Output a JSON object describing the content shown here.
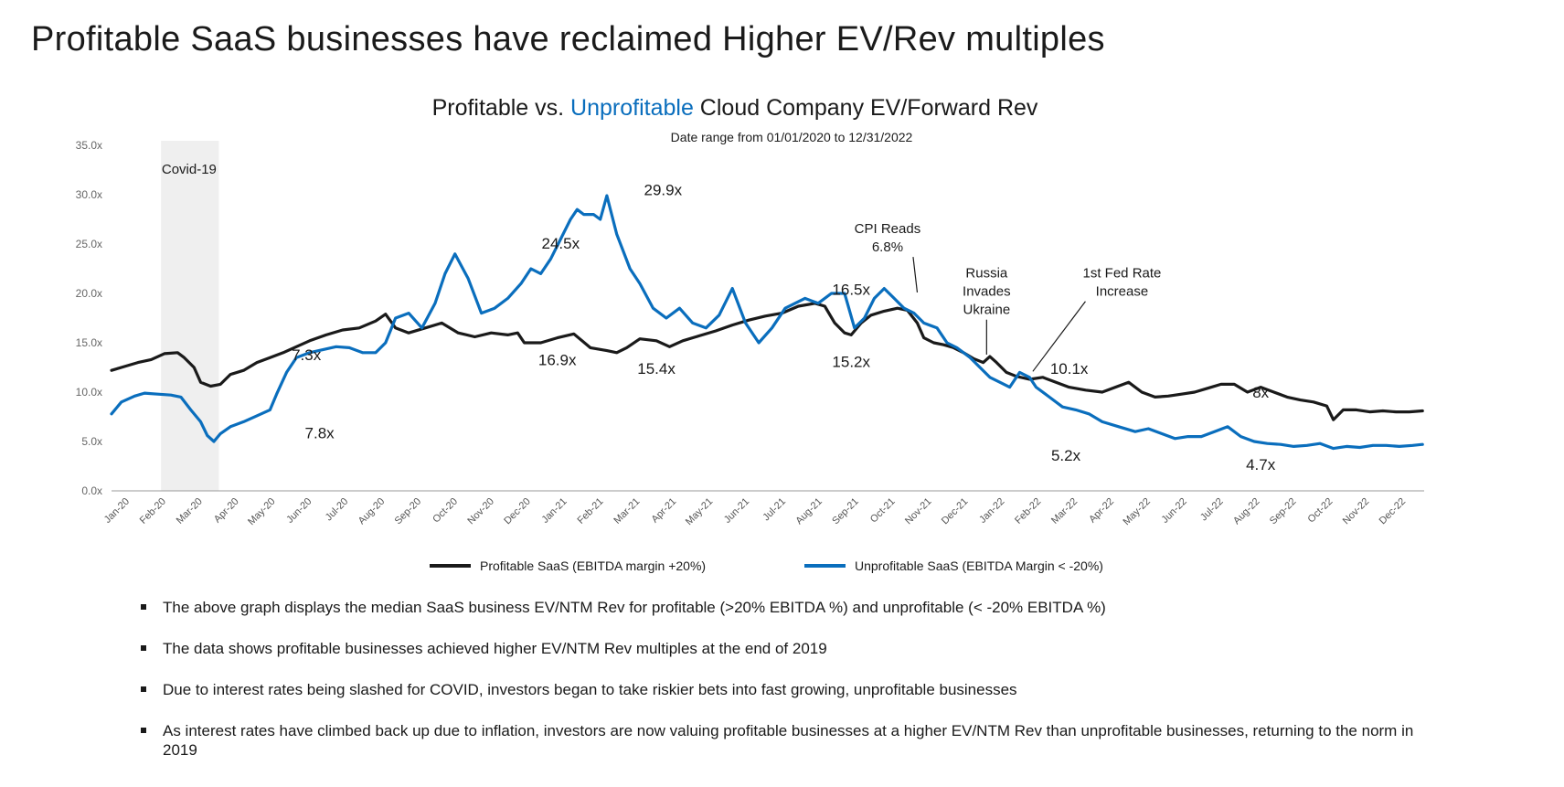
{
  "page": {
    "title": "Profitable SaaS businesses have reclaimed Higher EV/Rev multiples"
  },
  "chart_data": {
    "type": "line",
    "title": {
      "part1": "Profitable",
      "part2": " vs. ",
      "part3": "Unprofitable",
      "part4": " Cloud Company EV/Forward Rev"
    },
    "subtitle": "Date range from 01/01/2020 to 12/31/2022",
    "ylim": [
      0,
      35
    ],
    "y_ticks": [
      "0.0x",
      "5.0x",
      "10.0x",
      "15.0x",
      "20.0x",
      "25.0x",
      "30.0x",
      "35.0x"
    ],
    "x_ticks": [
      "Jan-20",
      "Feb-20",
      "Mar-20",
      "Apr-20",
      "May-20",
      "Jun-20",
      "Jul-20",
      "Aug-20",
      "Sep-20",
      "Oct-20",
      "Nov-20",
      "Dec-20",
      "Jan-21",
      "Feb-21",
      "Mar-21",
      "Apr-21",
      "May-21",
      "Jun-21",
      "Jul-21",
      "Aug-21",
      "Sep-21",
      "Oct-21",
      "Nov-21",
      "Dec-21",
      "Jan-22",
      "Feb-22",
      "Mar-22",
      "Apr-22",
      "May-22",
      "Jun-22",
      "Jul-22",
      "Aug-22",
      "Sep-22",
      "Oct-22",
      "Nov-22",
      "Dec-22"
    ],
    "grid": false,
    "legend_position": "bottom",
    "colors": {
      "profitable": "#1a1a1a",
      "unprofitable": "#0a6ebd",
      "shade": "#efefef"
    },
    "shaded_region": {
      "label": "Covid-19",
      "x_start": 1.5,
      "x_end": 3.25
    },
    "series": [
      {
        "name": "Profitable SaaS (EBITDA margin +20%)",
        "key": "profitable",
        "points": [
          [
            0,
            12.2
          ],
          [
            0.4,
            12.6
          ],
          [
            0.8,
            13.0
          ],
          [
            1.2,
            13.3
          ],
          [
            1.6,
            13.9
          ],
          [
            2.0,
            14.0
          ],
          [
            2.2,
            13.5
          ],
          [
            2.5,
            12.5
          ],
          [
            2.7,
            11.0
          ],
          [
            3.0,
            10.6
          ],
          [
            3.3,
            10.8
          ],
          [
            3.6,
            11.8
          ],
          [
            4.0,
            12.2
          ],
          [
            4.4,
            13.0
          ],
          [
            4.8,
            13.5
          ],
          [
            5.2,
            14.0
          ],
          [
            5.6,
            14.6
          ],
          [
            6.0,
            15.2
          ],
          [
            6.5,
            15.8
          ],
          [
            7.0,
            16.3
          ],
          [
            7.5,
            16.5
          ],
          [
            8.0,
            17.2
          ],
          [
            8.3,
            17.9
          ],
          [
            8.6,
            16.5
          ],
          [
            9.0,
            16.0
          ],
          [
            9.5,
            16.5
          ],
          [
            10.0,
            17.0
          ],
          [
            10.5,
            16.0
          ],
          [
            11.0,
            15.6
          ],
          [
            11.5,
            16.0
          ],
          [
            12.0,
            15.8
          ],
          [
            12.3,
            16.0
          ],
          [
            12.5,
            15.0
          ],
          [
            13.0,
            15.0
          ],
          [
            13.5,
            15.5
          ],
          [
            14.0,
            15.9
          ],
          [
            14.5,
            14.5
          ],
          [
            15.0,
            14.2
          ],
          [
            15.3,
            14.0
          ],
          [
            15.6,
            14.5
          ],
          [
            16.0,
            15.4
          ],
          [
            16.5,
            15.2
          ],
          [
            16.9,
            14.6
          ],
          [
            17.3,
            15.2
          ],
          [
            17.8,
            15.7
          ],
          [
            18.3,
            16.2
          ],
          [
            18.8,
            16.8
          ],
          [
            19.3,
            17.3
          ],
          [
            19.8,
            17.7
          ],
          [
            20.3,
            18.0
          ],
          [
            20.8,
            18.7
          ],
          [
            21.3,
            19.0
          ],
          [
            21.6,
            18.7
          ],
          [
            21.9,
            17.0
          ],
          [
            22.2,
            16.0
          ],
          [
            22.4,
            15.8
          ],
          [
            22.7,
            17.0
          ],
          [
            23.0,
            17.8
          ],
          [
            23.4,
            18.2
          ],
          [
            23.8,
            18.5
          ],
          [
            24.1,
            18.3
          ],
          [
            24.4,
            17.0
          ],
          [
            24.6,
            15.5
          ],
          [
            24.9,
            15.0
          ],
          [
            25.2,
            14.8
          ],
          [
            25.5,
            14.5
          ],
          [
            25.8,
            14.0
          ],
          [
            26.1,
            13.4
          ],
          [
            26.4,
            13.0
          ],
          [
            26.6,
            13.6
          ],
          [
            26.8,
            13.0
          ],
          [
            27.1,
            12.0
          ],
          [
            27.4,
            11.6
          ],
          [
            27.8,
            11.3
          ],
          [
            28.2,
            11.5
          ],
          [
            28.6,
            11.0
          ],
          [
            29.0,
            10.5
          ],
          [
            29.5,
            10.2
          ],
          [
            30.0,
            10.0
          ],
          [
            30.4,
            10.5
          ],
          [
            30.8,
            11.0
          ],
          [
            31.2,
            10.0
          ],
          [
            31.6,
            9.5
          ],
          [
            32.0,
            9.6
          ],
          [
            32.4,
            9.8
          ],
          [
            32.8,
            10.0
          ],
          [
            33.2,
            10.4
          ],
          [
            33.6,
            10.8
          ],
          [
            34.0,
            10.8
          ],
          [
            34.4,
            10.0
          ],
          [
            34.8,
            10.5
          ],
          [
            35.2,
            10.0
          ],
          [
            35.6,
            9.5
          ],
          [
            36.0,
            9.2
          ],
          [
            36.4,
            9.0
          ],
          [
            36.8,
            8.6
          ],
          [
            37.0,
            7.2
          ],
          [
            37.3,
            8.2
          ],
          [
            37.7,
            8.2
          ],
          [
            38.1,
            8.0
          ],
          [
            38.5,
            8.1
          ],
          [
            38.9,
            8.0
          ],
          [
            39.3,
            8.0
          ],
          [
            39.7,
            8.1
          ]
        ]
      },
      {
        "name": "Unprofitable SaaS (EBITDA Margin < -20%)",
        "key": "unprofitable",
        "points": [
          [
            0,
            7.8
          ],
          [
            0.3,
            9.0
          ],
          [
            0.7,
            9.6
          ],
          [
            1.0,
            9.9
          ],
          [
            1.4,
            9.8
          ],
          [
            1.8,
            9.7
          ],
          [
            2.1,
            9.5
          ],
          [
            2.4,
            8.2
          ],
          [
            2.7,
            7.0
          ],
          [
            2.9,
            5.6
          ],
          [
            3.1,
            5.0
          ],
          [
            3.3,
            5.8
          ],
          [
            3.6,
            6.5
          ],
          [
            4.0,
            7.0
          ],
          [
            4.4,
            7.6
          ],
          [
            4.8,
            8.2
          ],
          [
            5.0,
            9.8
          ],
          [
            5.3,
            12.0
          ],
          [
            5.6,
            13.5
          ],
          [
            6.0,
            14.0
          ],
          [
            6.4,
            14.3
          ],
          [
            6.8,
            14.6
          ],
          [
            7.2,
            14.5
          ],
          [
            7.6,
            14.0
          ],
          [
            8.0,
            14.0
          ],
          [
            8.3,
            15.0
          ],
          [
            8.6,
            17.5
          ],
          [
            9.0,
            18.0
          ],
          [
            9.4,
            16.5
          ],
          [
            9.8,
            19.0
          ],
          [
            10.1,
            22.0
          ],
          [
            10.4,
            24.0
          ],
          [
            10.8,
            21.5
          ],
          [
            11.2,
            18.0
          ],
          [
            11.6,
            18.5
          ],
          [
            12.0,
            19.5
          ],
          [
            12.4,
            21.0
          ],
          [
            12.7,
            22.5
          ],
          [
            13.0,
            22.0
          ],
          [
            13.3,
            23.5
          ],
          [
            13.6,
            25.5
          ],
          [
            13.9,
            27.5
          ],
          [
            14.1,
            28.5
          ],
          [
            14.3,
            28.0
          ],
          [
            14.6,
            28.0
          ],
          [
            14.8,
            27.5
          ],
          [
            15.0,
            29.9
          ],
          [
            15.3,
            26.0
          ],
          [
            15.7,
            22.5
          ],
          [
            16.0,
            21.0
          ],
          [
            16.4,
            18.5
          ],
          [
            16.8,
            17.5
          ],
          [
            17.2,
            18.5
          ],
          [
            17.6,
            17.0
          ],
          [
            18.0,
            16.5
          ],
          [
            18.4,
            17.8
          ],
          [
            18.8,
            20.5
          ],
          [
            19.2,
            17.0
          ],
          [
            19.6,
            15.0
          ],
          [
            20.0,
            16.5
          ],
          [
            20.4,
            18.5
          ],
          [
            20.7,
            19.0
          ],
          [
            21.0,
            19.5
          ],
          [
            21.4,
            19.0
          ],
          [
            21.8,
            20.0
          ],
          [
            22.2,
            20.0
          ],
          [
            22.5,
            16.5
          ],
          [
            22.8,
            17.5
          ],
          [
            23.1,
            19.5
          ],
          [
            23.4,
            20.5
          ],
          [
            23.7,
            19.5
          ],
          [
            24.0,
            18.5
          ],
          [
            24.3,
            18.0
          ],
          [
            24.6,
            17.0
          ],
          [
            25.0,
            16.5
          ],
          [
            25.3,
            15.0
          ],
          [
            25.6,
            14.5
          ],
          [
            26.0,
            13.5
          ],
          [
            26.3,
            12.5
          ],
          [
            26.6,
            11.5
          ],
          [
            26.9,
            11.0
          ],
          [
            27.2,
            10.5
          ],
          [
            27.5,
            12.0
          ],
          [
            27.8,
            11.5
          ],
          [
            28.0,
            10.5
          ],
          [
            28.4,
            9.5
          ],
          [
            28.8,
            8.5
          ],
          [
            29.2,
            8.2
          ],
          [
            29.6,
            7.8
          ],
          [
            30.0,
            7.0
          ],
          [
            30.5,
            6.5
          ],
          [
            31.0,
            6.0
          ],
          [
            31.4,
            6.3
          ],
          [
            31.8,
            5.8
          ],
          [
            32.2,
            5.3
          ],
          [
            32.6,
            5.5
          ],
          [
            33.0,
            5.5
          ],
          [
            33.4,
            6.0
          ],
          [
            33.8,
            6.5
          ],
          [
            34.2,
            5.5
          ],
          [
            34.6,
            5.0
          ],
          [
            35.0,
            4.8
          ],
          [
            35.4,
            4.7
          ],
          [
            35.8,
            4.5
          ],
          [
            36.2,
            4.6
          ],
          [
            36.6,
            4.8
          ],
          [
            37.0,
            4.3
          ],
          [
            37.4,
            4.5
          ],
          [
            37.8,
            4.4
          ],
          [
            38.2,
            4.6
          ],
          [
            38.6,
            4.6
          ],
          [
            39.0,
            4.5
          ],
          [
            39.4,
            4.6
          ],
          [
            39.7,
            4.7
          ]
        ]
      }
    ],
    "annotations": [
      {
        "text": "Covid-19",
        "x": 2.35,
        "y": 32.6
      },
      {
        "text": "29.9x",
        "x": 16.7,
        "y": 30.5
      },
      {
        "text": "24.5x",
        "x": 13.6,
        "y": 25.1
      },
      {
        "text": "16.9x",
        "x": 13.5,
        "y": 13.3
      },
      {
        "text": "15.4x",
        "x": 16.5,
        "y": 12.4
      },
      {
        "text": "7.8x",
        "x": 6.3,
        "y": 5.9
      },
      {
        "text": "7.3x",
        "x": 5.9,
        "y": 13.8
      },
      {
        "text": "16.5x",
        "x": 22.4,
        "y": 20.4
      },
      {
        "text": "15.2x",
        "x": 22.4,
        "y": 13.1
      },
      {
        "text": "10.1x",
        "x": 29.0,
        "y": 12.4
      },
      {
        "text": "5.2x",
        "x": 28.9,
        "y": 3.6
      },
      {
        "text": "8x",
        "x": 34.8,
        "y": 10.0
      },
      {
        "text": "4.7x",
        "x": 34.8,
        "y": 2.7
      }
    ],
    "event_annotations": [
      {
        "lines": [
          "CPI Reads",
          "6.8%"
        ],
        "x": 23.5,
        "y": 26.1,
        "arrow_to": [
          24.4,
          20.1
        ]
      },
      {
        "lines": [
          "Russia",
          "Invades",
          "Ukraine"
        ],
        "x": 26.5,
        "y": 21.6,
        "arrow_to": [
          26.5,
          13.8
        ]
      },
      {
        "lines": [
          "1st Fed Rate",
          "Increase"
        ],
        "x": 30.6,
        "y": 21.6,
        "arrow_to": [
          27.9,
          12.1
        ]
      }
    ]
  },
  "bullets": [
    "The above graph displays the median SaaS business EV/NTM Rev for profitable (>20% EBITDA %) and unprofitable (< -20% EBITDA %)",
    "The data shows profitable businesses achieved higher EV/NTM Rev multiples at the end of 2019",
    "Due to interest rates being slashed for COVID, investors began to take riskier bets into fast growing, unprofitable businesses",
    "As interest rates have climbed back up due to inflation, investors are now valuing profitable businesses at a higher EV/NTM Rev than unprofitable businesses, returning to the norm in 2019"
  ]
}
